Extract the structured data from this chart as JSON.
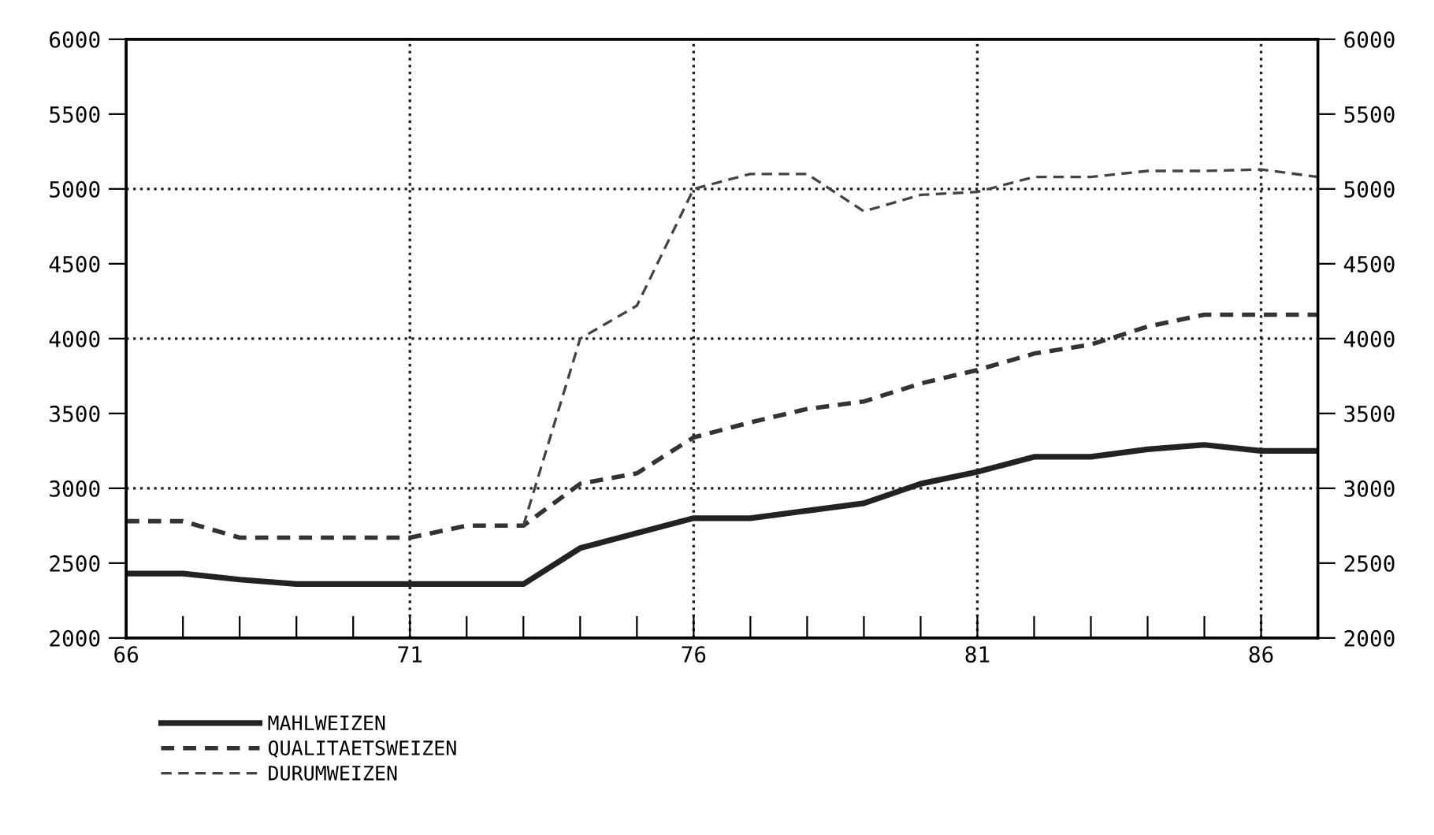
{
  "chart_data": {
    "type": "line",
    "x": [
      66,
      67,
      68,
      69,
      70,
      71,
      72,
      73,
      74,
      75,
      76,
      77,
      78,
      79,
      80,
      81,
      82,
      83,
      84,
      85,
      86,
      87
    ],
    "series": [
      {
        "name": "MAHLWEIZEN",
        "color": "#222222",
        "line_style": "solid",
        "values": [
          2430,
          2430,
          2390,
          2360,
          2360,
          2360,
          2360,
          2360,
          2600,
          2700,
          2800,
          2800,
          2850,
          2900,
          3030,
          3110,
          3210,
          3210,
          3260,
          3290,
          3250,
          3250
        ]
      },
      {
        "name": "QUALITAETSWEIZEN",
        "color": "#333333",
        "line_style": "dashed",
        "values": [
          2780,
          2780,
          2670,
          2670,
          2670,
          2670,
          2750,
          2750,
          3030,
          3100,
          3340,
          3440,
          3530,
          3580,
          3700,
          3790,
          3900,
          3960,
          4080,
          4160,
          4160,
          4160
        ]
      },
      {
        "name": "DURUMWEIZEN",
        "color": "#444444",
        "line_style": "dashed",
        "values": [
          null,
          null,
          null,
          null,
          null,
          null,
          null,
          2750,
          4000,
          4220,
          5000,
          5100,
          5100,
          4850,
          4960,
          4980,
          5080,
          5080,
          5120,
          5120,
          5130,
          5080
        ]
      }
    ],
    "xlim": [
      66,
      87
    ],
    "xticks": [
      66,
      {
        "value": 67,
        "label": null
      },
      {
        "value": 68,
        "label": null
      },
      {
        "value": 69,
        "label": null
      },
      {
        "value": 70,
        "label": null
      },
      71,
      {
        "value": 72,
        "label": null
      },
      {
        "value": 73,
        "label": null
      },
      {
        "value": 74,
        "label": null
      },
      {
        "value": 75,
        "label": null
      },
      76,
      {
        "value": 77,
        "label": null
      },
      {
        "value": 78,
        "label": null
      },
      {
        "value": 79,
        "label": null
      },
      {
        "value": 80,
        "label": null
      },
      81,
      {
        "value": 82,
        "label": null
      },
      {
        "value": 83,
        "label": null
      },
      {
        "value": 84,
        "label": null
      },
      {
        "value": 85,
        "label": null
      },
      86,
      {
        "value": 87,
        "label": null
      }
    ],
    "ylim": [
      2000,
      6000
    ],
    "yticks": [
      2000,
      2500,
      3000,
      3500,
      4000,
      4500,
      5000,
      5500,
      6000
    ],
    "y2lim": [
      2000,
      6000
    ],
    "y2ticks": [
      2000,
      2500,
      3000,
      3500,
      4000,
      4500,
      5000,
      5500,
      6000
    ],
    "ref_lines": [
      {
        "axis": "x",
        "value": 71,
        "line_style": "dotted"
      },
      {
        "axis": "x",
        "value": 76,
        "line_style": "dotted"
      },
      {
        "axis": "x",
        "value": 81,
        "line_style": "dotted"
      },
      {
        "axis": "x",
        "value": 86,
        "line_style": "dotted"
      },
      {
        "axis": "y",
        "value": 3000,
        "line_style": "dotted"
      },
      {
        "axis": "y",
        "value": 4000,
        "line_style": "dotted"
      },
      {
        "axis": "y",
        "value": 5000,
        "line_style": "dotted"
      }
    ],
    "legend": "bottom left",
    "grid": false
  }
}
